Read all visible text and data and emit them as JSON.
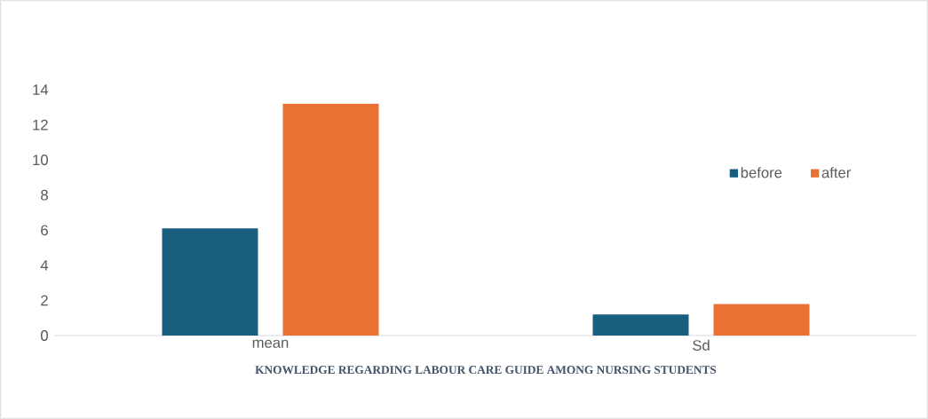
{
  "chart_data": {
    "type": "bar",
    "xlabel": "KNOWLEDGE REGARDING LABOUR CARE GUIDE AMONG NURSING STUDENTS",
    "categories": [
      "mean",
      "Sd"
    ],
    "series": [
      {
        "name": "before",
        "color": "#175e7f",
        "values": [
          6.1,
          1.2
        ]
      },
      {
        "name": "after",
        "color": "#e97132",
        "values": [
          13.2,
          1.8
        ]
      }
    ],
    "ylim": [
      0,
      14
    ],
    "yticks": [
      0,
      2,
      4,
      6,
      8,
      10,
      12,
      14
    ],
    "grid": false,
    "legend": "right"
  }
}
